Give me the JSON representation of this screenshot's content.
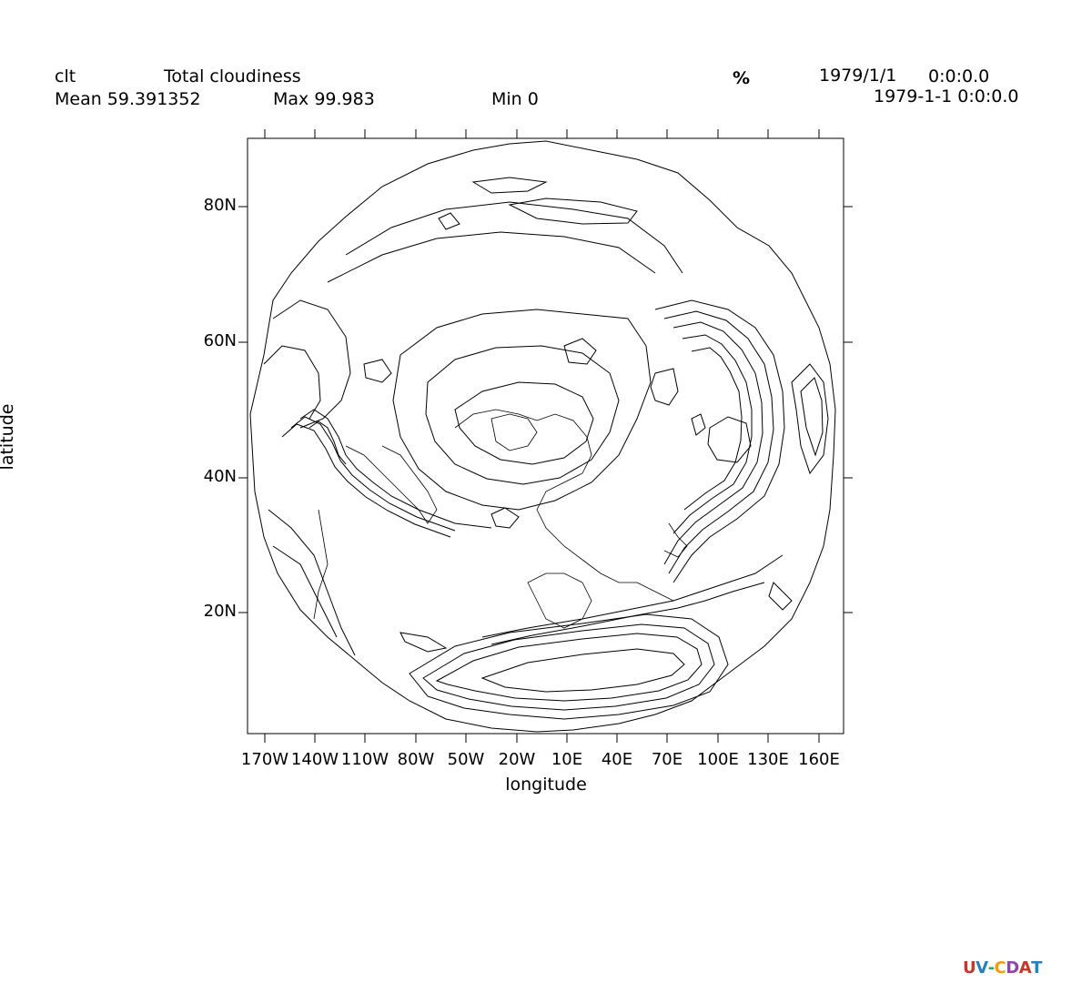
{
  "header": {
    "variable": "clt",
    "long_name": "Total cloudiness",
    "units": "%",
    "date": "1979/1/1",
    "time": "0:0:0.0",
    "mean": "Mean 59.391352",
    "max": "Max 99.983",
    "min": "Min 0",
    "datetime": "1979-1-1 0:0:0.0"
  },
  "axes": {
    "xlabel": "longitude",
    "ylabel": "latitude",
    "x_ticks": [
      "170W",
      "140W",
      "110W",
      "80W",
      "50W",
      "20W",
      "10E",
      "40E",
      "70E",
      "100E",
      "130E",
      "160E"
    ],
    "y_ticks": [
      "80N",
      "60N",
      "40N",
      "20N"
    ]
  },
  "map": {
    "projection": "polar stereographic (north)",
    "plot_type": "isoline contour",
    "line_color": "#000000"
  },
  "logo": {
    "text": "UV-CDAT",
    "colors": [
      "#c0392b",
      "#2980b9",
      "#27ae60",
      "#f39c12",
      "#8e44ad"
    ]
  }
}
